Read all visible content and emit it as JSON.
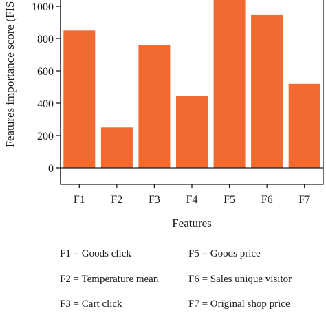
{
  "chart_data": {
    "type": "bar",
    "categories": [
      "F1",
      "F2",
      "F3",
      "F4",
      "F5",
      "F6",
      "F7"
    ],
    "values": [
      850,
      250,
      760,
      445,
      1050,
      945,
      520
    ],
    "xlabel": "Features",
    "ylabel": "Features importance score (FIS",
    "ylim": [
      0,
      1000
    ],
    "yticks": [
      0,
      200,
      400,
      600,
      800,
      1000
    ],
    "bar_color": "#F26A30",
    "axis_color": "#1a1a1a",
    "grid": false
  },
  "legend": [
    "F1 = Goods click",
    "F2 = Temperature mean",
    "F3 = Cart click",
    "F5 = Goods price",
    "F6 = Sales unique visitor",
    "F7 = Original shop price"
  ]
}
